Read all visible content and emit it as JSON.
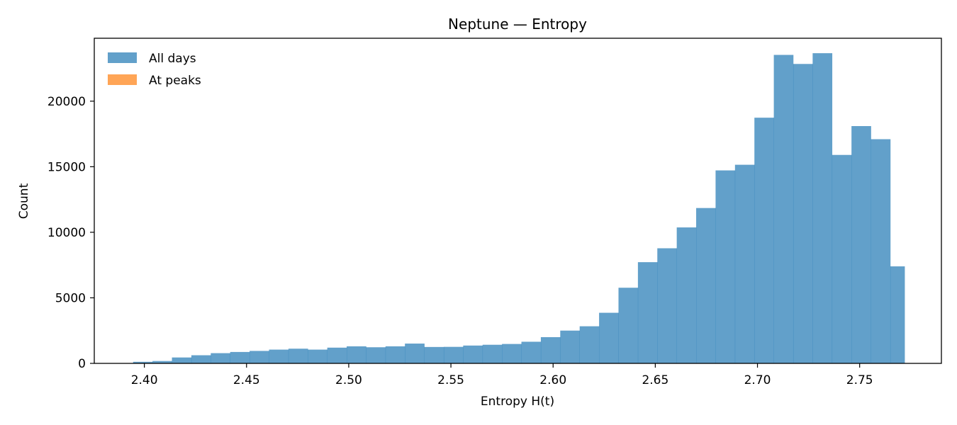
{
  "chart_data": {
    "type": "bar",
    "title": "Neptune — Entropy",
    "xlabel": "Entropy H(t)",
    "ylabel": "Count",
    "xlim": [
      2.3755,
      2.79
    ],
    "ylim": [
      0,
      24800
    ],
    "xticks": [
      2.4,
      2.45,
      2.5,
      2.55,
      2.6,
      2.65,
      2.7,
      2.75
    ],
    "xtick_labels": [
      "2.40",
      "2.45",
      "2.50",
      "2.55",
      "2.60",
      "2.65",
      "2.70",
      "2.75"
    ],
    "yticks": [
      0,
      5000,
      10000,
      15000,
      20000
    ],
    "ytick_labels": [
      "0",
      "5000",
      "10000",
      "15000",
      "20000"
    ],
    "grid": false,
    "legend_position": "top-left",
    "bin_edges": [
      2.3945,
      2.404,
      2.4135,
      2.423,
      2.4325,
      2.442,
      2.4515,
      2.461,
      2.4705,
      2.48,
      2.4895,
      2.499,
      2.5085,
      2.518,
      2.5275,
      2.537,
      2.5465,
      2.556,
      2.5655,
      2.575,
      2.5845,
      2.594,
      2.6035,
      2.613,
      2.6225,
      2.632,
      2.6415,
      2.651,
      2.6605,
      2.67,
      2.6795,
      2.689,
      2.6985,
      2.708,
      2.7175,
      2.727,
      2.7365,
      2.746,
      2.7555,
      2.765,
      2.772
    ],
    "series": [
      {
        "name": "All days",
        "color": "#1f77b4",
        "opacity": 0.7,
        "values": [
          120,
          180,
          450,
          620,
          780,
          870,
          950,
          1050,
          1120,
          1050,
          1200,
          1300,
          1230,
          1300,
          1510,
          1250,
          1260,
          1360,
          1420,
          1480,
          1650,
          2000,
          2500,
          2830,
          3860,
          5770,
          7720,
          8780,
          10370,
          11850,
          14720,
          15150,
          18740,
          23530,
          22840,
          23660,
          15900,
          18100,
          17100,
          7400
        ]
      },
      {
        "name": "At peaks",
        "color": "#ff7f0e",
        "opacity": 0.7,
        "values": []
      }
    ]
  }
}
